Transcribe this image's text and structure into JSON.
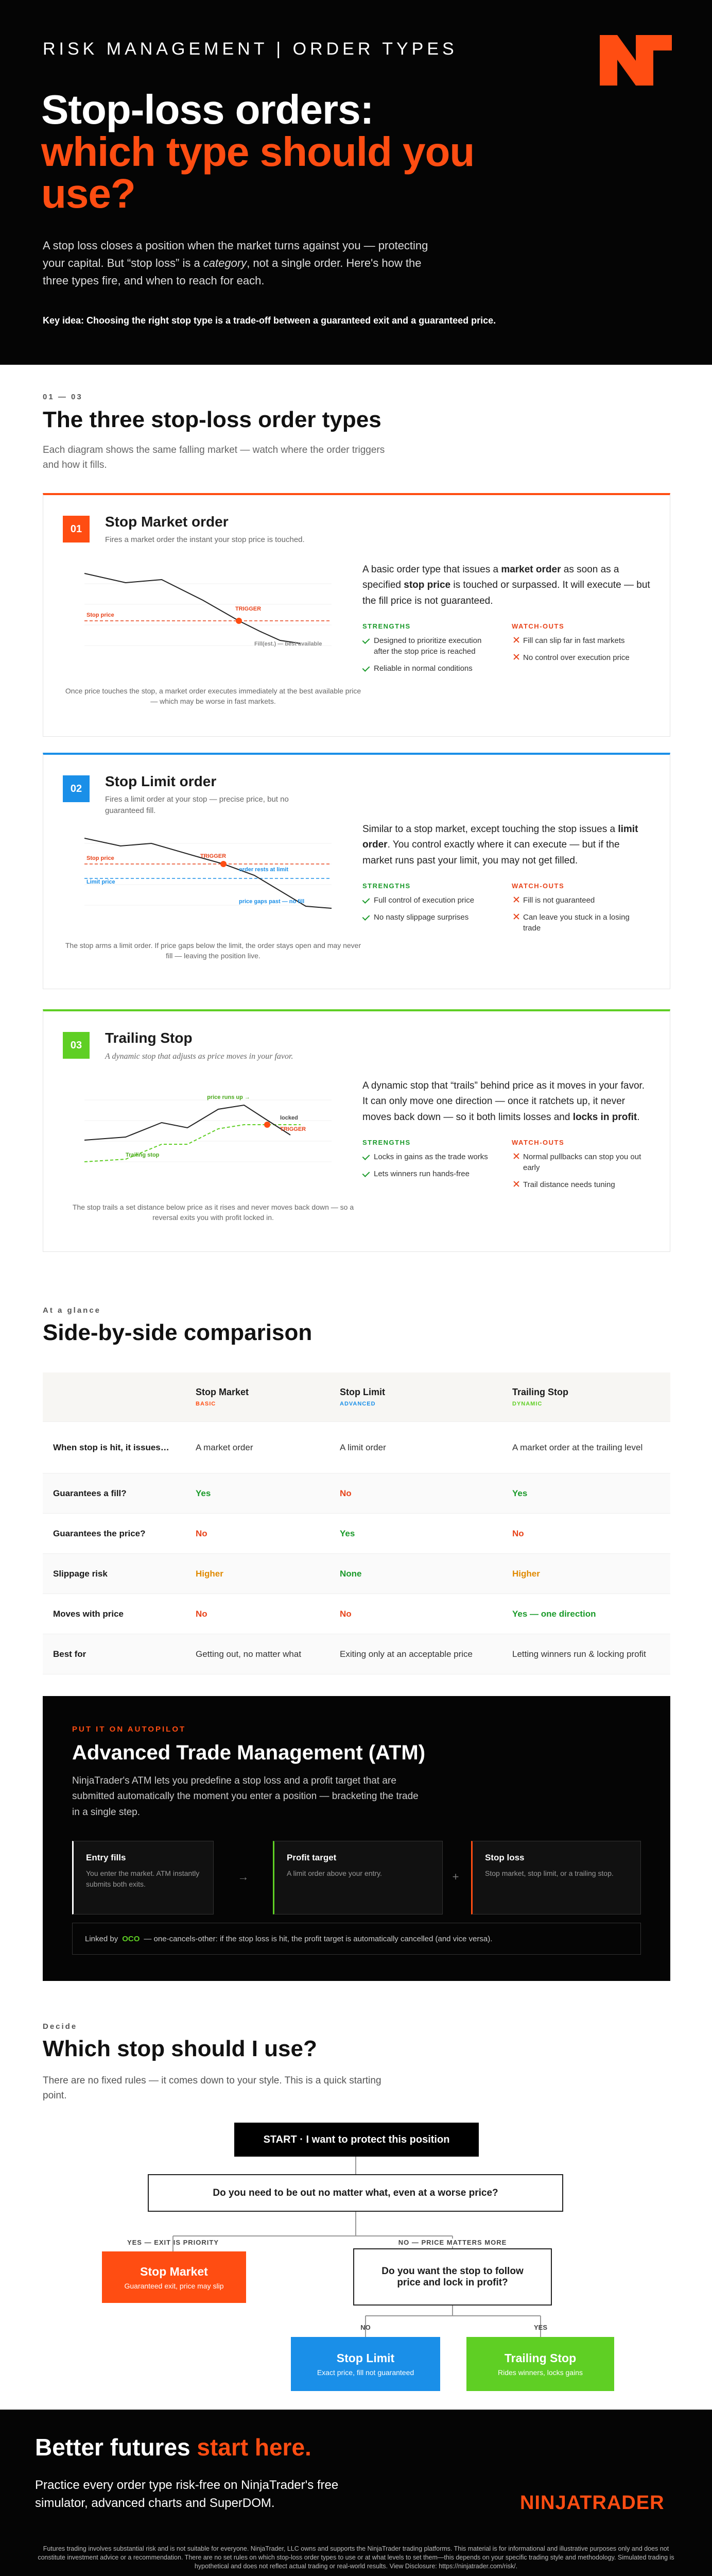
{
  "header": {
    "eyebrow": "RISK MANAGEMENT | ORDER TYPES",
    "title_line1": "Stop-loss orders:",
    "title_line2": "which type should you use?",
    "intro": [
      {
        "text": "A stop loss closes a position when the market turns against you — protecting your capital. But “stop loss” is a ",
        "italic": false
      },
      {
        "text": "category",
        "italic": true
      },
      {
        "text": ", not a single order. Here's how the three types fire, and when to reach for each.",
        "italic": false
      }
    ],
    "key_idea": "Key idea: Choosing the right stop type is a trade-off between a guaranteed exit and a guaranteed price."
  },
  "types": {
    "counter": "01 — 03",
    "title": "The three stop-loss order types",
    "subtitle": "Each diagram shows the same falling market — watch where the order triggers and how it fills.",
    "cards": [
      {
        "number": "01",
        "color": "#ff4d12",
        "title": "Stop Market order",
        "subtitle": "Fires a market order the instant your stop price is touched.",
        "chart_labels": [
          "Stop price",
          "TRIGGER",
          "Fill(est.) — best available"
        ],
        "caption": "Once price touches the stop, a market order executes immediately at the best available price — which may be worse in fast markets.",
        "description": [
          {
            "text": "A basic order type that issues a ",
            "bold": false
          },
          {
            "text": "market order",
            "bold": true
          },
          {
            "text": " as soon as a specified ",
            "bold": false
          },
          {
            "text": "stop price",
            "bold": true
          },
          {
            "text": " is touched or surpassed. It will execute — but the fill price is not guaranteed.",
            "bold": false
          }
        ],
        "strengths_title": "STRENGTHS",
        "strengths": [
          "Designed to prioritize execution after the stop price is reached",
          "Reliable in normal conditions"
        ],
        "watchouts_title": "WATCH-OUTS",
        "watchouts": [
          "Fill can slip far in fast markets",
          "No control over execution price"
        ]
      },
      {
        "number": "02",
        "color": "#1a8fe8",
        "title": "Stop Limit order",
        "subtitle": "Fires a limit order at your stop — precise price, but no guaranteed fill.",
        "chart_labels": [
          "Stop price",
          "Limit price",
          "TRIGGER",
          "order rests at limit",
          "price gaps past — no fill"
        ],
        "caption": "The stop arms a limit order. If price gaps below the limit, the order stays open and may never fill — leaving the position live.",
        "description": [
          {
            "text": "Similar to a stop market, except touching the stop issues a ",
            "bold": false
          },
          {
            "text": "limit order",
            "bold": true
          },
          {
            "text": ". You control exactly where it can execute — but if the market runs past your limit, you may not get filled.",
            "bold": false
          }
        ],
        "strengths_title": "STRENGTHS",
        "strengths": [
          "Full control of execution price",
          "No nasty slippage surprises"
        ],
        "watchouts_title": "WATCH-OUTS",
        "watchouts": [
          "Fill is not guaranteed",
          "Can leave you stuck in a losing trade"
        ]
      },
      {
        "number": "03",
        "color": "#5fcf24",
        "title": "Trailing Stop",
        "subtitle": "A dynamic stop that adjusts as price moves in your favor.",
        "chart_labels": [
          "Trailing stop",
          "price runs up →",
          "locked",
          "TRIGGER"
        ],
        "caption": "The stop trails a set distance below price as it rises and never moves back down — so a reversal exits you with profit locked in.",
        "description": [
          {
            "text": "A dynamic stop that “trails” behind price as it moves in your favor. It can only move one direction — once it ratchets up, it never moves back down — so it both limits losses and ",
            "bold": false
          },
          {
            "text": "locks in profit",
            "bold": true
          },
          {
            "text": ".",
            "bold": false
          }
        ],
        "strengths_title": "STRENGTHS",
        "strengths": [
          "Locks in gains as the trade works",
          "Lets winners run hands-free"
        ],
        "watchouts_title": "WATCH-OUTS",
        "watchouts": [
          "Normal pullbacks can stop you out early",
          "Trail distance needs tuning"
        ]
      }
    ]
  },
  "comparison": {
    "eyebrow": "At a glance",
    "title": "Side-by-side comparison",
    "columns": [
      {
        "name": "Stop Market",
        "tag": "BASIC",
        "color": "#ff4d12"
      },
      {
        "name": "Stop Limit",
        "tag": "ADVANCED",
        "color": "#1a8fe8"
      },
      {
        "name": "Trailing Stop",
        "tag": "DYNAMIC",
        "color": "#5fcf24"
      }
    ],
    "rows": [
      {
        "label": "When stop is hit, it issues…",
        "cells": [
          {
            "text": "A market order",
            "tone": "plain"
          },
          {
            "text": "A limit order",
            "tone": "plain"
          },
          {
            "text": "A market order at the trailing level",
            "tone": "plain"
          }
        ]
      },
      {
        "label": "Guarantees a fill?",
        "cells": [
          {
            "text": "Yes",
            "tone": "good"
          },
          {
            "text": "No",
            "tone": "bad"
          },
          {
            "text": "Yes",
            "tone": "good"
          }
        ]
      },
      {
        "label": "Guarantees the price?",
        "cells": [
          {
            "text": "No",
            "tone": "bad"
          },
          {
            "text": "Yes",
            "tone": "good"
          },
          {
            "text": "No",
            "tone": "bad"
          }
        ]
      },
      {
        "label": "Slippage risk",
        "cells": [
          {
            "text": "Higher",
            "tone": "warn"
          },
          {
            "text": "None",
            "tone": "good"
          },
          {
            "text": "Higher",
            "tone": "warn"
          }
        ]
      },
      {
        "label": "Moves with price",
        "cells": [
          {
            "text": "No",
            "tone": "bad"
          },
          {
            "text": "No",
            "tone": "bad"
          },
          {
            "text": "Yes — one direction",
            "tone": "good"
          }
        ]
      },
      {
        "label": "Best for",
        "cells": [
          {
            "text": "Getting out, no matter what",
            "tone": "plain"
          },
          {
            "text": "Exiting only at an acceptable price",
            "tone": "plain"
          },
          {
            "text": "Letting winners run & locking profit",
            "tone": "plain"
          }
        ]
      }
    ]
  },
  "atm": {
    "eyebrow": "PUT IT ON AUTOPILOT",
    "title": "Advanced Trade Management (ATM)",
    "text": "NinjaTrader's ATM lets you predefine a stop loss and a profit target that are submitted automatically the moment you enter a position — bracketing the trade in a single step.",
    "steps": [
      {
        "title": "Entry fills",
        "text": "You enter the market. ATM instantly submits both exits.",
        "color": "#ffffff"
      },
      {
        "title": "Profit target",
        "text": "A limit order above your entry.",
        "color": "#5fcf24"
      },
      {
        "title": "Stop loss",
        "text": "Stop market, stop limit, or a trailing stop.",
        "color": "#ff4d12"
      }
    ],
    "connectors": [
      "→",
      "+"
    ],
    "note_prefix": "Linked by",
    "note_key": "OCO",
    "note_text": "— one-cancels-other: if the stop loss is hit, the profit target is automatically cancelled (and vice versa)."
  },
  "decide": {
    "eyebrow": "Decide",
    "title": "Which stop should I use?",
    "text": "There are no fixed rules — it comes down to your style. This is a quick starting point.",
    "start": "START · I want to protect this position",
    "question1": "Do you need to be out no matter what, even at a worse price?",
    "yes_label": "YES — EXIT IS PRIORITY",
    "no_label": "NO — PRICE MATTERS MORE",
    "result_market": {
      "title": "Stop Market",
      "text": "Guaranteed exit, price may slip"
    },
    "question2": "Do you want the stop to follow price and lock in profit?",
    "no2": "NO",
    "yes2": "YES",
    "result_limit": {
      "title": "Stop Limit",
      "text": "Exact price, fill not guaranteed"
    },
    "result_trailing": {
      "title": "Trailing Stop",
      "text": "Rides winners, locks gains"
    }
  },
  "footer": {
    "title": "Better futures ",
    "title_accent": "start here.",
    "text": "Practice every order type risk-free on NinjaTrader's free simulator, advanced charts and SuperDOM.",
    "logo": "NINJATRADER",
    "disclaimer": "Futures trading involves substantial risk and is not suitable for everyone. NinjaTrader, LLC owns and supports the NinjaTrader trading platforms. This material is for informational and illustrative purposes only and does not constitute investment advice or a recommendation. There are no set rules on which stop-loss order types to use or at what levels to set them—this depends on your specific trading style and methodology. Simulated trading is hypothetical and does not reflect actual trading or real-world results. View Disclosure: https://ninjatrader.com/risk/."
  }
}
